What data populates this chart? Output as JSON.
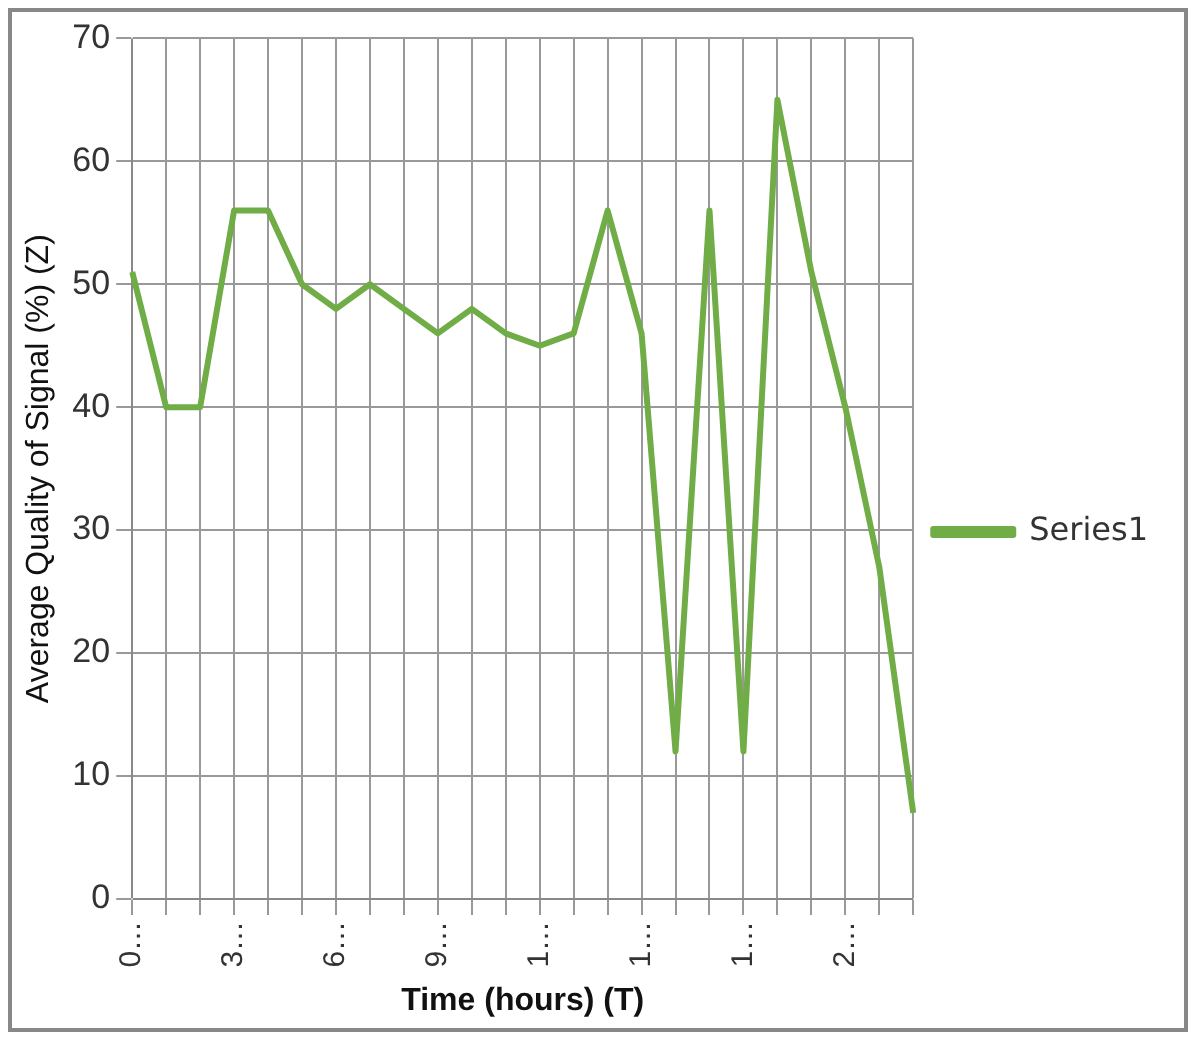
{
  "chart_data": {
    "type": "line",
    "xlabel": "Time (hours) (T)",
    "ylabel": "Average Quality of Signal (%) (Z)",
    "categories": [
      "0…",
      null,
      null,
      "3…",
      null,
      null,
      "6…",
      null,
      null,
      "9…",
      null,
      null,
      "1…",
      null,
      null,
      "1…",
      null,
      null,
      "1…",
      null,
      null,
      "2…",
      null,
      null
    ],
    "series": [
      {
        "name": "Series1",
        "color": "#70ad47",
        "values": [
          51,
          40,
          40,
          56,
          56,
          50,
          48,
          50,
          48,
          46,
          48,
          46,
          45,
          46,
          56,
          46,
          12,
          56,
          12,
          65,
          51,
          40,
          27,
          7
        ]
      }
    ],
    "ylim": [
      0,
      70
    ],
    "yticks": [
      0,
      10,
      20,
      30,
      40,
      50,
      60,
      70
    ],
    "grid": true,
    "legend": "right",
    "marker": "none",
    "line_style": "solid"
  }
}
